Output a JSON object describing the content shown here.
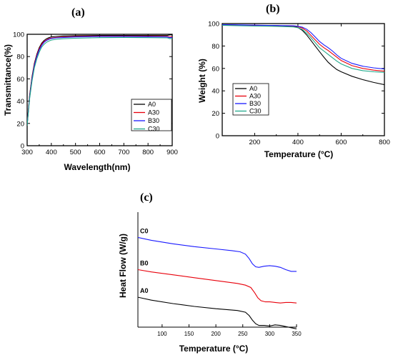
{
  "chart_data": [
    {
      "panel": "(a)",
      "type": "line",
      "xlabel": "Wavelength(nm)",
      "ylabel": "Transmittance(%)",
      "xlim": [
        300,
        900
      ],
      "ylim": [
        0,
        100
      ],
      "xticks": [
        300,
        400,
        500,
        600,
        700,
        800,
        900
      ],
      "yticks": [
        0,
        20,
        40,
        60,
        80,
        100
      ],
      "legend_position": "bottom-right",
      "grid": false,
      "series": [
        {
          "name": "A0",
          "color": "#000000",
          "x": [
            300,
            310,
            320,
            330,
            340,
            350,
            360,
            370,
            380,
            390,
            400,
            420,
            450,
            500,
            600,
            700,
            800,
            880,
            890,
            900
          ],
          "y": [
            18,
            45,
            62,
            74,
            82,
            88,
            92,
            94.5,
            96,
            97,
            97.6,
            98.1,
            98.5,
            98.8,
            99,
            99,
            99,
            99,
            99.4,
            99.5
          ]
        },
        {
          "name": "A30",
          "color": "#e8000b",
          "x": [
            300,
            310,
            320,
            330,
            340,
            350,
            360,
            370,
            380,
            390,
            400,
            420,
            450,
            500,
            600,
            700,
            800,
            880,
            890,
            900
          ],
          "y": [
            20,
            44,
            61,
            73,
            81,
            87,
            91,
            93.5,
            95,
            96,
            96.6,
            97.2,
            97.6,
            98,
            98.4,
            98.4,
            98.2,
            98,
            97.5,
            97.8
          ]
        },
        {
          "name": "B30",
          "color": "#1a1aff",
          "x": [
            300,
            310,
            320,
            330,
            340,
            350,
            360,
            370,
            380,
            390,
            400,
            420,
            450,
            500,
            600,
            700,
            800,
            880,
            890,
            900
          ],
          "y": [
            19,
            43,
            60,
            72,
            80,
            86,
            90,
            92.8,
            94.5,
            95.5,
            96.2,
            96.8,
            97.2,
            97.6,
            98,
            98,
            97.8,
            97.6,
            97,
            97.2
          ]
        },
        {
          "name": "C30",
          "color": "#1fa88a",
          "x": [
            300,
            310,
            320,
            330,
            340,
            350,
            360,
            370,
            380,
            390,
            400,
            420,
            450,
            500,
            600,
            700,
            800,
            880,
            890,
            900
          ],
          "y": [
            18,
            42,
            58,
            70,
            78,
            84,
            88.5,
            91,
            92.8,
            94,
            94.8,
            95.5,
            96,
            96.5,
            97,
            97.2,
            97,
            96.8,
            96,
            96.3
          ]
        }
      ]
    },
    {
      "panel": "(b)",
      "type": "line",
      "xlabel": "Temperature (°C)",
      "ylabel": "Weight (%)",
      "xlim": [
        50,
        800
      ],
      "ylim": [
        0,
        100
      ],
      "xticks": [
        200,
        400,
        600,
        800
      ],
      "yticks": [
        0,
        20,
        40,
        60,
        80,
        100
      ],
      "legend_position": "bottom-left",
      "grid": false,
      "series": [
        {
          "name": "A0",
          "color": "#000000",
          "x": [
            50,
            100,
            200,
            300,
            380,
            400,
            420,
            440,
            460,
            480,
            500,
            520,
            540,
            560,
            580,
            600,
            650,
            700,
            750,
            800
          ],
          "y": [
            99,
            98.8,
            98.5,
            98.2,
            97.5,
            96.5,
            94,
            90,
            85,
            80,
            75,
            70,
            65.5,
            62,
            59,
            57,
            53,
            50,
            47.5,
            45.5
          ]
        },
        {
          "name": "A30",
          "color": "#e8000b",
          "x": [
            50,
            100,
            200,
            300,
            380,
            400,
            420,
            440,
            460,
            480,
            500,
            520,
            540,
            560,
            580,
            600,
            650,
            700,
            750,
            800
          ],
          "y": [
            99,
            98.8,
            98.5,
            98.2,
            97.8,
            97.3,
            96,
            93.5,
            89.5,
            85.5,
            81.5,
            78.5,
            76,
            73,
            70,
            67,
            62.5,
            60,
            58.5,
            57.5
          ]
        },
        {
          "name": "B30",
          "color": "#1a1aff",
          "x": [
            50,
            100,
            200,
            300,
            380,
            400,
            420,
            440,
            460,
            480,
            500,
            520,
            540,
            560,
            580,
            600,
            650,
            700,
            750,
            800
          ],
          "y": [
            99,
            98.9,
            98.6,
            98.3,
            98,
            97.6,
            96.8,
            95,
            92,
            88,
            84,
            81,
            78.5,
            75.5,
            72,
            69,
            64.5,
            62,
            60.5,
            59.5
          ]
        },
        {
          "name": "C30",
          "color": "#1fa88a",
          "x": [
            50,
            100,
            200,
            300,
            380,
            400,
            420,
            440,
            460,
            480,
            500,
            520,
            540,
            560,
            580,
            600,
            650,
            700,
            750,
            800
          ],
          "y": [
            98.5,
            98.2,
            97.8,
            97.5,
            97,
            96.3,
            94.8,
            91.5,
            87.5,
            83,
            78.5,
            75.5,
            72.5,
            69.5,
            66.5,
            64,
            60,
            58,
            57,
            56.5
          ]
        }
      ]
    },
    {
      "panel": "(c)",
      "type": "line",
      "xlabel": "Temperature (°C)",
      "ylabel": "Heat Flow (W/g)",
      "xlim": [
        55,
        350
      ],
      "ylim": [
        0,
        10
      ],
      "xticks": [
        100,
        150,
        200,
        250,
        300,
        350
      ],
      "yticks": [],
      "grid": false,
      "series": [
        {
          "name": "C0",
          "color": "#1a1aff",
          "x": [
            55,
            80,
            120,
            160,
            200,
            230,
            245,
            255,
            262,
            268,
            274,
            280,
            290,
            300,
            310,
            320,
            330,
            340,
            350
          ],
          "y": [
            7.8,
            7.55,
            7.25,
            7.0,
            6.8,
            6.65,
            6.55,
            6.35,
            5.95,
            5.5,
            5.25,
            5.2,
            5.3,
            5.35,
            5.3,
            5.2,
            5.0,
            4.85,
            4.85
          ]
        },
        {
          "name": "B0",
          "color": "#e8000b",
          "x": [
            55,
            80,
            120,
            160,
            200,
            240,
            255,
            265,
            272,
            278,
            284,
            292,
            300,
            310,
            320,
            330,
            340,
            350
          ],
          "y": [
            5.0,
            4.8,
            4.55,
            4.3,
            4.05,
            3.8,
            3.65,
            3.45,
            3.0,
            2.55,
            2.3,
            2.2,
            2.2,
            2.15,
            2.1,
            2.15,
            2.15,
            2.1
          ]
        },
        {
          "name": "A0",
          "color": "#000000",
          "x": [
            55,
            80,
            120,
            160,
            200,
            240,
            255,
            262,
            268,
            274,
            280,
            290,
            300,
            310,
            320,
            330,
            340,
            350
          ],
          "y": [
            2.6,
            2.35,
            2.05,
            1.8,
            1.6,
            1.45,
            1.3,
            1.0,
            0.6,
            0.3,
            0.15,
            0.15,
            0.1,
            0.2,
            0.15,
            0.05,
            -0.05,
            -0.15
          ]
        }
      ]
    }
  ]
}
